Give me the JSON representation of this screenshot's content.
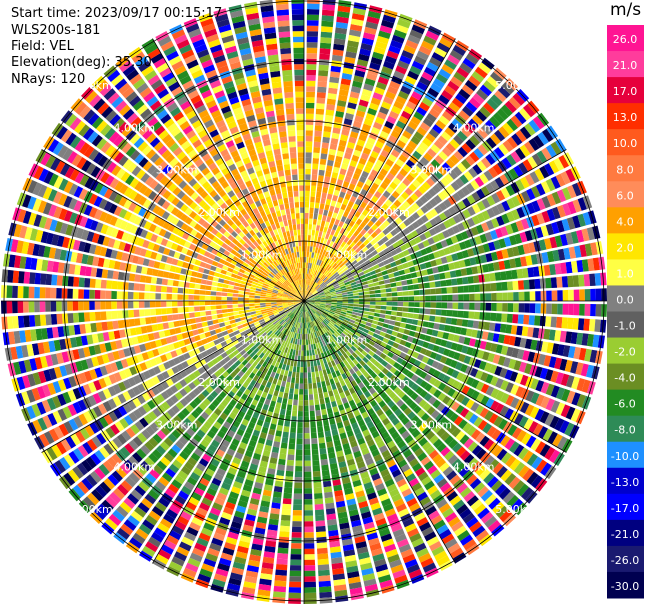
{
  "header": {
    "start_time": "Start time: 2023/09/17 00:15:17",
    "site": "WLS200s-181",
    "field": "Field: VEL",
    "elevation": "Elevation(deg): 35.30",
    "nrays": "NRays: 120"
  },
  "chart_data": {
    "type": "heatmap",
    "title": "",
    "plot_kind": "PPI polar scan",
    "field": "VEL",
    "elevation_deg": 35.3,
    "n_rays": 120,
    "range_rings_km": [
      1.0,
      2.0,
      3.0,
      4.0,
      5.0
    ],
    "ring_labels": [
      "1.00km",
      "2.00km",
      "3.00km",
      "4.00km",
      "5.00km"
    ],
    "colorbar": {
      "unit": "m/s",
      "range": [
        -30,
        30
      ],
      "tick_labels": [
        "26.0",
        "21.0",
        "17.0",
        "13.0",
        "10.0",
        "8.0",
        "6.0",
        "4.0",
        "2.0",
        "1.0",
        "0.0",
        "-1.0",
        "-2.0",
        "-4.0",
        "-6.0",
        "-8.0",
        "-10.0",
        "-13.0",
        "-17.0",
        "-21.0",
        "-26.0",
        "-30.0"
      ],
      "colors": [
        "#ff1493",
        "#ff3c9c",
        "#e6003c",
        "#ff2e00",
        "#ff5a1e",
        "#ff7a40",
        "#ff8c5a",
        "#ffa000",
        "#ffe600",
        "#ffff44",
        "#808080",
        "#606060",
        "#9acd32",
        "#6b8e23",
        "#228b22",
        "#2e8b57",
        "#1e90ff",
        "#0000cd",
        "#0000ff",
        "#000080",
        "#1a1a70",
        "#000050"
      ]
    },
    "velocity_pattern": {
      "receding_sector": "northwest, positive 2 to 6 m/s",
      "approaching_sector": "southeast, negative -2 to -6 m/s",
      "outer_ring": "noisy, mixed values"
    }
  }
}
